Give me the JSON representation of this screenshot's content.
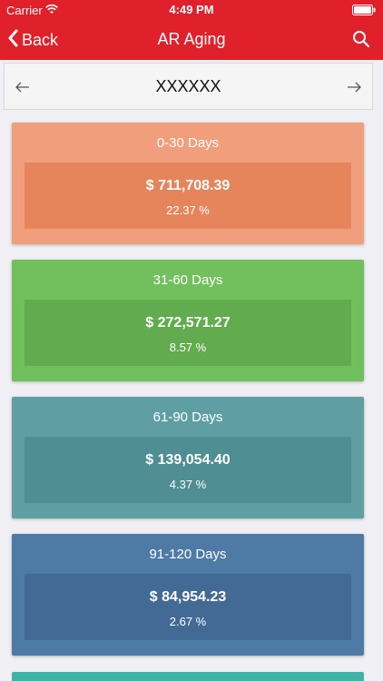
{
  "status_bar": {
    "carrier": "Carrier",
    "time": "4:49 PM"
  },
  "nav": {
    "back_label": "Back",
    "title": "AR Aging"
  },
  "selector": {
    "label": "XXXXXX"
  },
  "buckets": [
    {
      "label": "0-30 Days",
      "amount": "$ 711,708.39",
      "percent": "22.37 %",
      "color": "#f19e7c",
      "inner_color": "#e6855b"
    },
    {
      "label": "31-60 Days",
      "amount": "$ 272,571.27",
      "percent": "8.57 %",
      "color": "#72bf5e",
      "inner_color": "#62ab4e"
    },
    {
      "label": "61-90 Days",
      "amount": "$ 139,054.40",
      "percent": "4.37 %",
      "color": "#5f9fa3",
      "inner_color": "#4f8e92"
    },
    {
      "label": "91-120 Days",
      "amount": "$ 84,954.23",
      "percent": "2.67 %",
      "color": "#4e7aa6",
      "inner_color": "#426a95"
    }
  ],
  "colors": {
    "nav_bar": "#e0202a",
    "background": "#efeff4",
    "next_bucket_strip": "#3fb3a6"
  }
}
